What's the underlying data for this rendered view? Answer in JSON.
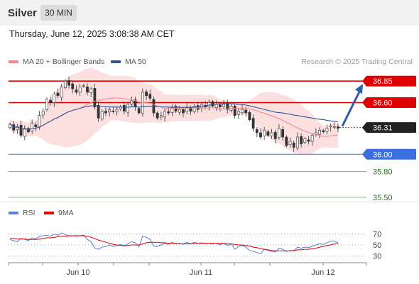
{
  "header": {
    "symbol": "Silver",
    "timeframe": "30 MIN"
  },
  "datetime": "Thursday, June 12, 2025 3:08:38 AM CET",
  "legend": {
    "items": [
      {
        "label": "MA 20 + Bollinger Bands",
        "color": "#f08a8a"
      },
      {
        "label": "MA 50",
        "color": "#2f5496"
      }
    ],
    "credit": "Research © 2025 Trading Central"
  },
  "rsi_legend": {
    "items": [
      {
        "label": "RSI",
        "color": "#5a7fd6"
      },
      {
        "label": "9MA",
        "color": "#e00000"
      }
    ]
  },
  "chart_data": {
    "type": "candlestick",
    "price_levels": [
      {
        "value": "36.85",
        "kind": "resistance",
        "color": "#e00000"
      },
      {
        "value": "36.60",
        "kind": "resistance",
        "color": "#e00000"
      },
      {
        "value": "36.31",
        "kind": "current",
        "color": "#222222"
      },
      {
        "value": "36.00",
        "kind": "support",
        "color": "#3b6fe0"
      },
      {
        "value": "35.80",
        "kind": "support",
        "color": "#1f7a1f"
      },
      {
        "value": "35.50",
        "kind": "support",
        "color": "#1f7a1f"
      }
    ],
    "ylim": [
      35.4,
      37.0
    ],
    "x_labels": [
      "Jun 10",
      "Jun 11",
      "Jun 12"
    ],
    "candles_approx_close": [
      36.35,
      36.28,
      36.32,
      36.22,
      36.3,
      36.26,
      36.36,
      36.32,
      36.45,
      36.5,
      36.64,
      36.6,
      36.7,
      36.68,
      36.78,
      36.85,
      36.8,
      36.76,
      36.72,
      36.78,
      36.8,
      36.72,
      36.76,
      36.55,
      36.42,
      36.5,
      36.48,
      36.52,
      36.5,
      36.52,
      36.55,
      36.5,
      36.58,
      36.62,
      36.55,
      36.48,
      36.72,
      36.68,
      36.65,
      36.48,
      36.42,
      36.45,
      36.5,
      36.48,
      36.54,
      36.5,
      36.52,
      36.48,
      36.55,
      36.5,
      36.56,
      36.52,
      36.58,
      36.55,
      36.6,
      36.56,
      36.58,
      36.55,
      36.58,
      36.52,
      36.56,
      36.45,
      36.5,
      36.52,
      36.48,
      36.4,
      36.3,
      36.25,
      36.2,
      36.28,
      36.22,
      36.25,
      36.18,
      36.3,
      36.2,
      36.1,
      36.15,
      36.08,
      36.2,
      36.12,
      36.18,
      36.15,
      36.22,
      36.25,
      36.28,
      36.26,
      36.3,
      36.33,
      36.32,
      36.3
    ],
    "forecast_arrow": {
      "from": "36.31",
      "to": "36.85",
      "color": "#2f5ea8"
    },
    "rsi": {
      "levels": [
        "70",
        "50",
        "30"
      ],
      "ylim": [
        20,
        80
      ],
      "rsi_values": [
        60,
        58,
        56,
        62,
        60,
        58,
        63,
        61,
        66,
        67,
        68,
        66,
        70,
        68,
        72,
        69,
        66,
        67,
        66,
        67,
        68,
        60,
        56,
        44,
        42,
        46,
        47,
        50,
        47,
        49,
        51,
        48,
        52,
        56,
        54,
        47,
        66,
        64,
        60,
        48,
        47,
        50,
        53,
        51,
        55,
        52,
        53,
        51,
        55,
        52,
        55,
        53,
        54,
        52,
        53,
        52,
        53,
        50,
        53,
        49,
        52,
        42,
        47,
        49,
        46,
        40,
        38,
        36,
        34,
        42,
        40,
        38,
        37,
        44,
        42,
        38,
        40,
        39,
        46,
        44,
        46,
        45,
        48,
        50,
        52,
        51,
        54,
        57,
        57,
        54
      ],
      "ma_values": [
        62,
        62,
        61,
        61,
        61,
        60,
        60,
        60,
        61,
        62,
        63,
        63,
        64,
        65,
        66,
        66,
        67,
        67,
        67,
        67,
        67,
        66,
        64,
        62,
        59,
        57,
        55,
        53,
        51,
        50,
        49,
        49,
        49,
        50,
        50,
        50,
        52,
        54,
        55,
        55,
        55,
        54,
        54,
        53,
        53,
        53,
        52,
        52,
        52,
        52,
        53,
        53,
        53,
        53,
        53,
        53,
        53,
        53,
        53,
        52,
        52,
        51,
        50,
        50,
        49,
        48,
        46,
        45,
        43,
        42,
        41,
        40,
        39,
        39,
        39,
        39,
        39,
        40,
        41,
        41,
        42,
        42,
        43,
        44,
        46,
        47,
        49,
        50,
        52,
        53
      ]
    }
  }
}
